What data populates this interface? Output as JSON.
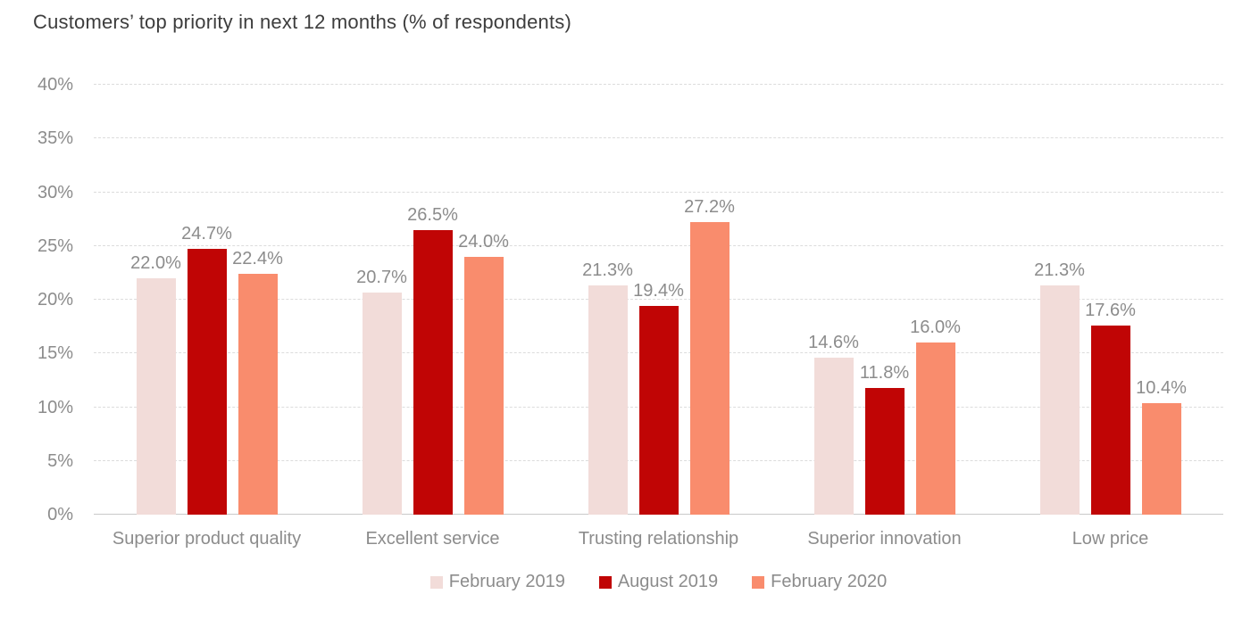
{
  "chart_data": {
    "type": "bar",
    "title": "Customers’ top priority in next 12 months (% of respondents)",
    "categories": [
      "Superior product quality",
      "Excellent service",
      "Trusting relationship",
      "Superior innovation",
      "Low price"
    ],
    "series": [
      {
        "name": "February 2019",
        "color": "#f2dcd9",
        "values": [
          22.0,
          20.7,
          21.3,
          14.6,
          21.3
        ],
        "labels": [
          "22.0%",
          "20.7%",
          "21.3%",
          "14.6%",
          "21.3%"
        ]
      },
      {
        "name": "August 2019",
        "color": "#c00505",
        "values": [
          24.7,
          26.5,
          19.4,
          11.8,
          17.6
        ],
        "labels": [
          "24.7%",
          "26.5%",
          "19.4%",
          "11.8%",
          "17.6%"
        ]
      },
      {
        "name": "February 2020",
        "color": "#f98c6d",
        "values": [
          22.4,
          24.0,
          27.2,
          16.0,
          10.4
        ],
        "labels": [
          "22.4%",
          "24.0%",
          "27.2%",
          "16.0%",
          "10.4%"
        ]
      }
    ],
    "xlabel": "",
    "ylabel": "",
    "ylim": [
      0,
      40
    ],
    "y_tick_step": 5,
    "y_ticks": [
      "0%",
      "5%",
      "10%",
      "15%",
      "20%",
      "25%",
      "30%",
      "35%",
      "40%"
    ],
    "grid": "horizontal-dashed",
    "legend_position": "bottom-center",
    "colors": {
      "title_text": "#3d3d3d",
      "axis_text": "#8c8c8c",
      "data_label_text": "#8c8c8c",
      "gridline": "#dcdcdc",
      "baseline": "#c9c9c9",
      "background": "#ffffff"
    }
  }
}
